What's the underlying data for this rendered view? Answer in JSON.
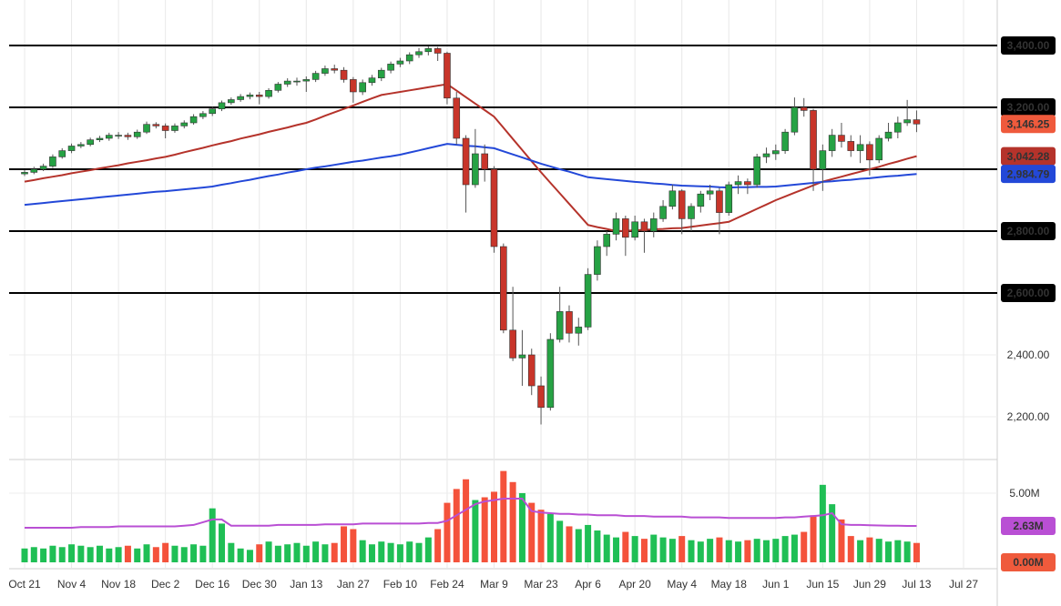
{
  "chart_data": {
    "type": "candlestick",
    "categories": [
      "Oct 21",
      null,
      null,
      null,
      null,
      "Nov 4",
      null,
      null,
      null,
      null,
      "Nov 18",
      null,
      null,
      null,
      null,
      "Dec 2",
      null,
      null,
      null,
      null,
      "Dec 16",
      null,
      null,
      null,
      null,
      "Dec 30",
      null,
      null,
      null,
      null,
      "Jan 13",
      null,
      null,
      null,
      null,
      "Jan 27",
      null,
      null,
      null,
      null,
      "Feb 10",
      null,
      null,
      null,
      null,
      "Feb 24",
      null,
      null,
      null,
      null,
      "Mar 9",
      null,
      null,
      null,
      null,
      "Mar 23",
      null,
      null,
      null,
      null,
      "Apr 6",
      null,
      null,
      null,
      null,
      "Apr 20",
      null,
      null,
      null,
      null,
      "May 4",
      null,
      null,
      null,
      null,
      "May 18",
      null,
      null,
      null,
      null,
      "Jun 1",
      null,
      null,
      null,
      null,
      "Jun 15",
      null,
      null,
      null,
      null,
      "Jun 29",
      null,
      null,
      null,
      null,
      "Jul 13",
      null,
      null,
      null,
      null,
      "Jul 27"
    ],
    "open": [
      2985,
      2990,
      3000,
      3010,
      3040,
      3060,
      3075,
      3080,
      3095,
      3100,
      3110,
      3110,
      3105,
      3120,
      3145,
      3140,
      3125,
      3140,
      3150,
      3170,
      3180,
      3195,
      3215,
      3225,
      3235,
      3240,
      3235,
      3255,
      3275,
      3285,
      3285,
      3290,
      3310,
      3325,
      3320,
      3290,
      3250,
      3280,
      3295,
      3320,
      3340,
      3350,
      3370,
      3380,
      3390,
      3375,
      3230,
      3100,
      2950,
      3050,
      3000,
      2750,
      2480,
      2390,
      2400,
      2300,
      2230,
      2450,
      2540,
      2470,
      2490,
      2660,
      2750,
      2790,
      2840,
      2780,
      2830,
      2800,
      2840,
      2880,
      2930,
      2840,
      2880,
      2920,
      2930,
      2860,
      2950,
      2960,
      2950,
      3040,
      3050,
      3060,
      3120,
      3200,
      3190,
      3000,
      3060,
      3110,
      3090,
      3060,
      3080,
      3030,
      3100,
      3120,
      3150,
      3160,
      null,
      null,
      null,
      null,
      null
    ],
    "high": [
      2998,
      3008,
      3018,
      3048,
      3068,
      3083,
      3088,
      3102,
      3108,
      3118,
      3120,
      3118,
      3128,
      3154,
      3152,
      3148,
      3148,
      3158,
      3178,
      3188,
      3202,
      3222,
      3232,
      3243,
      3248,
      3250,
      3262,
      3282,
      3294,
      3296,
      3300,
      3318,
      3335,
      3338,
      3330,
      3298,
      3290,
      3305,
      3328,
      3348,
      3360,
      3378,
      3392,
      3398,
      3395,
      3380,
      3250,
      3110,
      3130,
      3080,
      3010,
      2760,
      2620,
      2480,
      2420,
      2330,
      2470,
      2620,
      2560,
      2520,
      2680,
      2770,
      2800,
      2860,
      2850,
      2850,
      2840,
      2860,
      2900,
      2950,
      2935,
      2890,
      2930,
      2950,
      2940,
      2960,
      2980,
      2970,
      3050,
      3070,
      3080,
      3130,
      3232,
      3230,
      3195,
      3080,
      3130,
      3150,
      3110,
      3110,
      3090,
      3110,
      3150,
      3170,
      3224,
      3190,
      null,
      null,
      null,
      null,
      null
    ],
    "low": [
      2978,
      2984,
      2994,
      3004,
      3034,
      3052,
      3068,
      3074,
      3088,
      3092,
      3098,
      3095,
      3098,
      3114,
      3132,
      3100,
      3118,
      3132,
      3144,
      3162,
      3172,
      3188,
      3208,
      3218,
      3226,
      3210,
      3228,
      3248,
      3266,
      3270,
      3250,
      3282,
      3302,
      3310,
      3280,
      3215,
      3240,
      3270,
      3285,
      3310,
      3330,
      3340,
      3360,
      3368,
      3350,
      3210,
      3080,
      2860,
      2940,
      2960,
      2730,
      2470,
      2380,
      2300,
      2270,
      2175,
      2220,
      2440,
      2440,
      2430,
      2480,
      2640,
      2720,
      2770,
      2720,
      2770,
      2730,
      2780,
      2830,
      2870,
      2790,
      2800,
      2860,
      2900,
      2790,
      2850,
      2920,
      2920,
      2940,
      3020,
      3030,
      3050,
      3110,
      3170,
      2930,
      2930,
      3040,
      3070,
      3040,
      3020,
      2980,
      3020,
      3090,
      3100,
      3140,
      3120,
      null,
      null,
      null,
      null,
      null
    ],
    "close": [
      2990,
      3000,
      3010,
      3040,
      3060,
      3075,
      3080,
      3095,
      3100,
      3110,
      3110,
      3105,
      3120,
      3145,
      3140,
      3125,
      3140,
      3150,
      3170,
      3180,
      3195,
      3215,
      3225,
      3235,
      3240,
      3235,
      3255,
      3275,
      3285,
      3285,
      3290,
      3310,
      3325,
      3320,
      3290,
      3250,
      3280,
      3295,
      3320,
      3340,
      3350,
      3370,
      3380,
      3390,
      3375,
      3230,
      3100,
      2950,
      3050,
      3000,
      2750,
      2480,
      2390,
      2400,
      2300,
      2230,
      2450,
      2540,
      2470,
      2490,
      2660,
      2750,
      2790,
      2840,
      2780,
      2830,
      2800,
      2840,
      2880,
      2930,
      2840,
      2880,
      2920,
      2930,
      2860,
      2950,
      2960,
      2950,
      3040,
      3050,
      3060,
      3120,
      3200,
      3190,
      3000,
      3060,
      3110,
      3090,
      3060,
      3080,
      3030,
      3100,
      3120,
      3150,
      3160,
      3146.25,
      null,
      null,
      null,
      null,
      null
    ],
    "up_color": "#26a244",
    "down_color": "#c8352a",
    "ylim": [
      2076.5,
      3517.6
    ],
    "yticks": [
      {
        "value": 2200,
        "label": "2,200.00"
      },
      {
        "value": 2400,
        "label": "2,400.00"
      },
      {
        "value": 2600,
        "label": "2,600.00"
      },
      {
        "value": 2800,
        "label": "2,800.00"
      },
      {
        "value": 3200,
        "label": "3,200.00"
      },
      {
        "value": 3400,
        "label": "3,400.00"
      }
    ],
    "hlines": [
      2600,
      2800,
      3000,
      3200,
      3400
    ],
    "grid": true,
    "ma_lines": [
      {
        "color": "#b5332b",
        "values": [
          2960,
          2965,
          2971,
          2976,
          2981,
          2987,
          2992,
          2997,
          3003,
          3008,
          3013,
          3019,
          3024,
          3029,
          3035,
          3040,
          3047,
          3055,
          3062,
          3069,
          3077,
          3084,
          3091,
          3099,
          3106,
          3113,
          3121,
          3128,
          3135,
          3143,
          3150,
          3161,
          3173,
          3184,
          3195,
          3206,
          3218,
          3229,
          3240,
          3245,
          3250,
          3255,
          3260,
          3265,
          3270,
          3275,
          3254,
          3233,
          3212,
          3191,
          3170,
          3134,
          3098,
          3062,
          3026,
          2990,
          2956,
          2922,
          2888,
          2854,
          2820,
          2813,
          2807,
          2800,
          2801,
          2803,
          2804,
          2806,
          2807,
          2809,
          2810,
          2814,
          2818,
          2822,
          2826,
          2830,
          2844,
          2858,
          2872,
          2886,
          2900,
          2912,
          2924,
          2936,
          2948,
          2960,
          2968,
          2976,
          2984,
          2992,
          3000,
          3008,
          3017,
          3025,
          3034,
          3042.28,
          null,
          null,
          null,
          null,
          null
        ]
      },
      {
        "color": "#2348d8",
        "values": [
          2885,
          2888,
          2891,
          2894,
          2897,
          2900,
          2903,
          2906,
          2909,
          2912,
          2915,
          2918,
          2921,
          2924,
          2927,
          2929,
          2932,
          2935,
          2938,
          2941,
          2944,
          2950,
          2955,
          2961,
          2966,
          2972,
          2978,
          2983,
          2989,
          2994,
          3000,
          3005,
          3009,
          3014,
          3019,
          3024,
          3028,
          3033,
          3038,
          3042,
          3047,
          3054,
          3061,
          3068,
          3075,
          3082,
          3079,
          3076,
          3074,
          3071,
          3068,
          3058,
          3048,
          3038,
          3028,
          3018,
          3009,
          3000,
          2992,
          2983,
          2974,
          2971,
          2968,
          2965,
          2962,
          2959,
          2957,
          2954,
          2952,
          2949,
          2947,
          2946,
          2945,
          2944,
          2942,
          2941,
          2942,
          2942,
          2943,
          2943,
          2944,
          2947,
          2950,
          2953,
          2956,
          2959,
          2961,
          2964,
          2966,
          2969,
          2971,
          2974,
          2977,
          2979,
          2982,
          2984.79,
          null,
          null,
          null,
          null,
          null
        ]
      }
    ],
    "last_labels": [
      {
        "value": 3146.25,
        "label": "3,146.25",
        "color": "#ef5a3c"
      },
      {
        "value": 3042.28,
        "label": "3,042.28",
        "color": "#b5332b"
      },
      {
        "value": 2984.79,
        "label": "2,984.79",
        "color": "#2348d8"
      }
    ],
    "volume": {
      "values": [
        1.0,
        1.1,
        1.0,
        1.2,
        1.1,
        1.3,
        1.2,
        1.1,
        1.2,
        1.0,
        1.1,
        1.2,
        1.0,
        1.3,
        1.1,
        1.4,
        1.2,
        1.1,
        1.3,
        1.2,
        3.9,
        2.8,
        1.4,
        1.0,
        0.9,
        1.3,
        1.5,
        1.2,
        1.3,
        1.4,
        1.2,
        1.5,
        1.3,
        1.4,
        2.6,
        2.4,
        1.6,
        1.3,
        1.5,
        1.4,
        1.3,
        1.5,
        1.4,
        1.8,
        2.4,
        4.3,
        5.3,
        6.0,
        4.5,
        4.7,
        5.1,
        6.6,
        5.8,
        5.0,
        4.3,
        3.8,
        3.5,
        3.0,
        2.6,
        2.4,
        2.7,
        2.3,
        2.0,
        1.8,
        2.2,
        1.9,
        1.7,
        2.0,
        1.8,
        1.7,
        1.9,
        1.6,
        1.5,
        1.7,
        1.8,
        1.6,
        1.5,
        1.6,
        1.7,
        1.6,
        1.7,
        1.9,
        2.0,
        2.2,
        3.4,
        5.6,
        4.2,
        3.1,
        1.9,
        1.6,
        1.8,
        1.7,
        1.5,
        1.6,
        1.5,
        1.4,
        null,
        null,
        null,
        null,
        null
      ],
      "up_color": "#1fbf55",
      "down_color": "#f4523b",
      "ylim": [
        0,
        7.43
      ],
      "yticks": [
        {
          "value": 5,
          "label": "5.00M"
        }
      ],
      "ma": {
        "color": "#b94fd4",
        "values": [
          2.5,
          2.5,
          2.5,
          2.5,
          2.5,
          2.5,
          2.55,
          2.55,
          2.55,
          2.55,
          2.6,
          2.6,
          2.6,
          2.6,
          2.6,
          2.6,
          2.6,
          2.65,
          2.7,
          2.9,
          3.1,
          3.1,
          2.65,
          2.65,
          2.65,
          2.65,
          2.65,
          2.7,
          2.7,
          2.7,
          2.7,
          2.7,
          2.75,
          2.75,
          2.75,
          2.75,
          2.8,
          2.8,
          2.8,
          2.8,
          2.8,
          2.8,
          2.8,
          2.85,
          2.85,
          3.0,
          3.4,
          3.8,
          4.2,
          4.4,
          4.5,
          4.6,
          4.6,
          4.6,
          3.7,
          3.6,
          3.55,
          3.5,
          3.5,
          3.45,
          3.45,
          3.4,
          3.4,
          3.4,
          3.35,
          3.35,
          3.35,
          3.3,
          3.3,
          3.3,
          3.3,
          3.25,
          3.25,
          3.25,
          3.25,
          3.2,
          3.2,
          3.2,
          3.2,
          3.2,
          3.2,
          3.25,
          3.25,
          3.3,
          3.35,
          3.4,
          3.55,
          2.75,
          2.7,
          2.7,
          2.68,
          2.66,
          2.65,
          2.64,
          2.63,
          2.63,
          null,
          null,
          null,
          null,
          null
        ]
      },
      "last_labels": [
        {
          "value": 2.63,
          "label": "2.63M",
          "color": "#b94fd4"
        },
        {
          "value": 0,
          "label": "0.00M",
          "color": "#ef5a3c"
        }
      ]
    }
  }
}
